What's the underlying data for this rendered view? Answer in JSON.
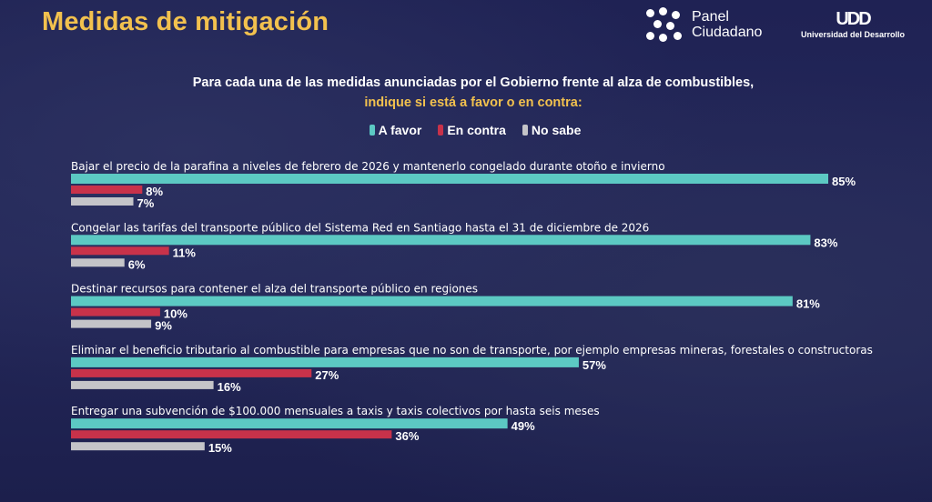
{
  "header": {
    "title": "Medidas de mitigación",
    "logo_panel": "Panel Ciudadano",
    "logo_udd": "UDD",
    "logo_udd_sub": "Universidad del Desarrollo"
  },
  "chart_data": {
    "type": "bar",
    "orientation": "horizontal",
    "title": "Para cada una de las medidas anunciadas por el Gobierno frente al alza de combustibles,",
    "subtitle": "indique si está a favor o en contra:",
    "legend_position": "top",
    "grid": false,
    "xlim": [
      0,
      100
    ],
    "categories": [
      "Bajar el precio de la parafina a niveles de febrero de 2026 y mantenerlo congelado durante otoño e invierno",
      "Congelar las tarifas del transporte público del Sistema Red en Santiago hasta el 31 de diciembre de 2026",
      "Destinar recursos para contener el alza del transporte público en regiones",
      "Eliminar el beneficio tributario al combustible para empresas que no son de transporte, por ejemplo empresas mineras, forestales o constructoras",
      "Entregar una subvención de $100.000 mensuales a taxis y taxis colectivos por hasta seis meses"
    ],
    "series": [
      {
        "name": "A favor",
        "color": "#5cc9c3",
        "values": [
          85,
          83,
          81,
          57,
          49
        ]
      },
      {
        "name": "En contra",
        "color": "#c8324a",
        "values": [
          8,
          11,
          10,
          27,
          36
        ]
      },
      {
        "name": "No sabe",
        "color": "#c4c4c8",
        "values": [
          7,
          6,
          9,
          16,
          15
        ]
      }
    ],
    "value_suffix": "%"
  }
}
